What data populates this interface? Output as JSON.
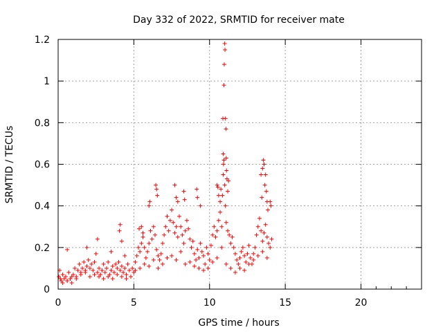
{
  "chart_data": {
    "type": "scatter",
    "title": "Day 332 of 2022, SRMTID for receiver mate",
    "xlabel": "GPS time / hours",
    "ylabel": "SRMTID / TECUs",
    "xlim": [
      0,
      24
    ],
    "ylim": [
      0,
      1.2
    ],
    "xticks": [
      0,
      5,
      10,
      15,
      20
    ],
    "xtick_labels": [
      "0",
      "5",
      "10",
      "15",
      "20"
    ],
    "yticks": [
      0,
      0.2,
      0.4,
      0.6,
      0.8,
      1,
      1.2
    ],
    "ytick_labels": [
      "0",
      "0.2",
      "0.4",
      "0.6",
      "0.8",
      "1",
      "1.2"
    ],
    "grid": true,
    "marker": "+",
    "series": [
      {
        "name": "SRMTID",
        "color": "#ff0000",
        "x": [
          0.05,
          0.1,
          0.15,
          0.2,
          0.3,
          0.4,
          0.5,
          0.6,
          0.7,
          0.8,
          0.9,
          1.0,
          1.1,
          1.2,
          1.3,
          1.4,
          1.5,
          1.6,
          1.7,
          1.8,
          1.9,
          2.0,
          2.1,
          2.2,
          2.3,
          2.4,
          2.5,
          2.6,
          2.7,
          2.8,
          2.9,
          3.0,
          3.1,
          3.2,
          3.3,
          3.4,
          3.5,
          3.6,
          3.7,
          3.8,
          3.9,
          4.0,
          4.1,
          4.2,
          4.3,
          4.4,
          4.5,
          4.6,
          4.7,
          4.8,
          4.9,
          5.0,
          5.1,
          5.2,
          5.3,
          5.4,
          5.5,
          5.6,
          5.7,
          5.8,
          5.9,
          6.0,
          6.1,
          6.2,
          6.3,
          6.4,
          6.5,
          6.6,
          6.7,
          6.8,
          6.9,
          7.0,
          7.1,
          7.2,
          7.3,
          7.4,
          7.5,
          7.6,
          7.7,
          7.8,
          7.9,
          8.0,
          8.1,
          8.2,
          8.3,
          8.4,
          8.5,
          8.6,
          8.7,
          8.8,
          8.9,
          9.0,
          9.1,
          9.2,
          9.3,
          9.4,
          9.5,
          9.6,
          9.7,
          9.8,
          9.9,
          10.0,
          10.1,
          10.2,
          10.3,
          10.4,
          10.5,
          10.6,
          10.7,
          10.8,
          10.85,
          10.9,
          10.95,
          11.0,
          11.05,
          11.1,
          11.2,
          11.3,
          11.4,
          11.5,
          11.6,
          11.7,
          11.8,
          11.9,
          12.0,
          12.1,
          12.2,
          12.3,
          12.4,
          12.5,
          12.6,
          12.7,
          12.8,
          12.9,
          13.0,
          13.1,
          13.2,
          13.3,
          13.4,
          13.5,
          13.6,
          13.7,
          13.8,
          13.9,
          14.0,
          14.1,
          0.3,
          0.6,
          0.9,
          1.2,
          1.5,
          1.8,
          2.1,
          2.4,
          2.7,
          3.0,
          3.3,
          3.6,
          3.9,
          4.2,
          4.5,
          4.8,
          5.1,
          5.4,
          5.7,
          6.0,
          6.3,
          6.6,
          6.9,
          7.2,
          7.5,
          7.8,
          8.1,
          8.4,
          8.7,
          9.0,
          9.3,
          9.6,
          9.9,
          10.2,
          10.5,
          10.8,
          11.1,
          11.4,
          11.7,
          12.0,
          12.3,
          12.6,
          12.9,
          13.2,
          13.5,
          13.8,
          4.05,
          4.1,
          4.2,
          5.35,
          5.5,
          5.6,
          6.0,
          6.05,
          6.45,
          6.5,
          6.55,
          7.7,
          7.8,
          7.9,
          8.3,
          8.35,
          9.15,
          9.2,
          9.4,
          10.5,
          10.55,
          10.6,
          10.7,
          10.75,
          10.88,
          10.9,
          10.92,
          10.95,
          10.97,
          11.0,
          11.02,
          11.05,
          11.08,
          11.1,
          11.12,
          11.15,
          11.2,
          11.25,
          13.4,
          13.45,
          13.5,
          13.55,
          13.6,
          13.65,
          13.7,
          13.75,
          13.8,
          13.85,
          14.0,
          14.05,
          0.6,
          1.9,
          2.6,
          3.5,
          4.4
        ],
        "y": [
          0.06,
          0.09,
          0.05,
          0.04,
          0.07,
          0.05,
          0.06,
          0.04,
          0.08,
          0.05,
          0.03,
          0.07,
          0.1,
          0.06,
          0.09,
          0.12,
          0.08,
          0.1,
          0.13,
          0.09,
          0.11,
          0.14,
          0.1,
          0.12,
          0.09,
          0.13,
          0.17,
          0.08,
          0.1,
          0.07,
          0.09,
          0.12,
          0.08,
          0.1,
          0.13,
          0.07,
          0.09,
          0.11,
          0.08,
          0.12,
          0.1,
          0.13,
          0.09,
          0.11,
          0.08,
          0.1,
          0.07,
          0.12,
          0.09,
          0.06,
          0.1,
          0.08,
          0.13,
          0.16,
          0.2,
          0.18,
          0.22,
          0.25,
          0.2,
          0.15,
          0.18,
          0.22,
          0.28,
          0.24,
          0.3,
          0.26,
          0.19,
          0.16,
          0.14,
          0.17,
          0.22,
          0.26,
          0.3,
          0.35,
          0.28,
          0.33,
          0.38,
          0.32,
          0.27,
          0.3,
          0.25,
          0.35,
          0.3,
          0.26,
          0.22,
          0.28,
          0.33,
          0.29,
          0.24,
          0.2,
          0.23,
          0.17,
          0.14,
          0.19,
          0.15,
          0.22,
          0.18,
          0.16,
          0.12,
          0.2,
          0.17,
          0.14,
          0.21,
          0.26,
          0.3,
          0.25,
          0.28,
          0.33,
          0.37,
          0.3,
          0.45,
          0.55,
          0.62,
          0.5,
          0.4,
          0.32,
          0.28,
          0.26,
          0.22,
          0.25,
          0.2,
          0.17,
          0.14,
          0.12,
          0.15,
          0.18,
          0.2,
          0.16,
          0.13,
          0.17,
          0.21,
          0.15,
          0.12,
          0.17,
          0.2,
          0.26,
          0.3,
          0.34,
          0.28,
          0.23,
          0.27,
          0.31,
          0.25,
          0.22,
          0.2,
          0.24,
          0.03,
          0.04,
          0.06,
          0.05,
          0.07,
          0.08,
          0.06,
          0.07,
          0.06,
          0.05,
          0.06,
          0.05,
          0.07,
          0.06,
          0.05,
          0.06,
          0.09,
          0.1,
          0.12,
          0.11,
          0.14,
          0.1,
          0.12,
          0.15,
          0.16,
          0.14,
          0.18,
          0.12,
          0.13,
          0.11,
          0.1,
          0.09,
          0.1,
          0.13,
          0.15,
          0.2,
          0.12,
          0.1,
          0.08,
          0.1,
          0.09,
          0.12,
          0.14,
          0.16,
          0.18,
          0.15,
          0.28,
          0.31,
          0.23,
          0.29,
          0.3,
          0.27,
          0.4,
          0.42,
          0.5,
          0.48,
          0.45,
          0.5,
          0.44,
          0.42,
          0.47,
          0.43,
          0.48,
          0.44,
          0.4,
          0.5,
          0.49,
          0.45,
          0.42,
          0.48,
          0.82,
          0.65,
          0.6,
          0.98,
          1.08,
          1.18,
          1.15,
          0.82,
          0.77,
          0.63,
          0.57,
          0.53,
          0.47,
          0.52,
          0.55,
          0.44,
          0.58,
          0.62,
          0.6,
          0.5,
          0.55,
          0.47,
          0.42,
          0.38,
          0.42,
          0.4,
          0.19,
          0.2,
          0.24,
          0.18,
          0.16
        ]
      }
    ]
  }
}
